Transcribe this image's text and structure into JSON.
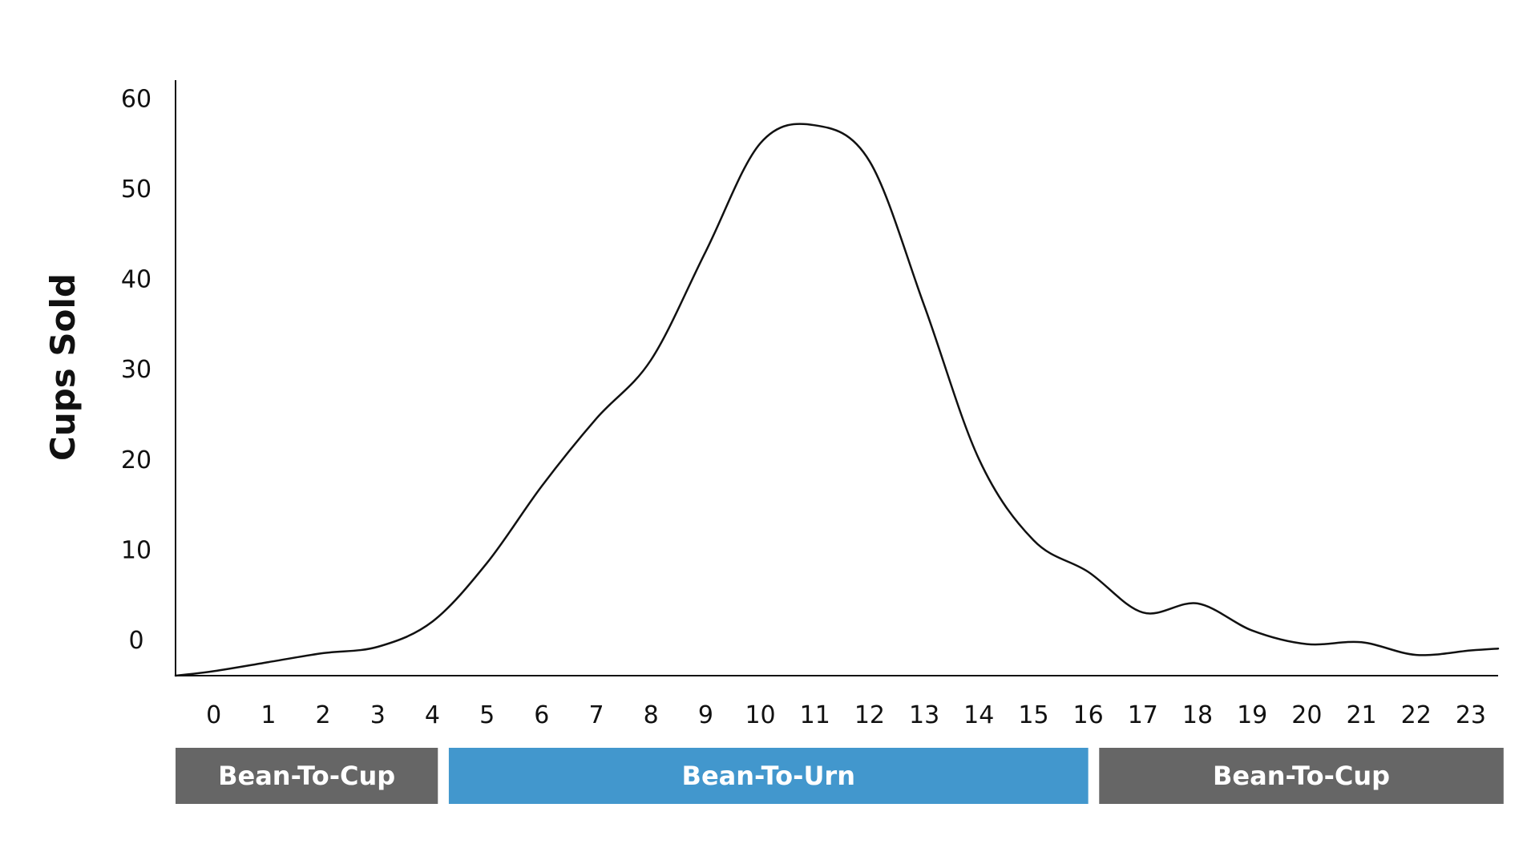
{
  "chart_data": {
    "type": "line",
    "title": "",
    "xlabel": "",
    "ylabel": "Cups  Sold",
    "x": [
      0,
      1,
      2,
      3,
      4,
      5,
      6,
      7,
      8,
      9,
      10,
      11,
      12,
      13,
      14,
      15,
      16,
      17,
      18,
      19,
      20,
      21,
      22,
      23
    ],
    "x_tick_labels": [
      "0",
      "1",
      "2",
      "3",
      "4",
      "5",
      "6",
      "7",
      "8",
      "9",
      "10",
      "11",
      "12",
      "13",
      "14",
      "15",
      "16",
      "17",
      "18",
      "19",
      "20",
      "21",
      "22",
      "23"
    ],
    "y_tick_labels": [
      "0",
      "10",
      "20",
      "30",
      "40",
      "50",
      "60"
    ],
    "y_ticks": [
      0,
      10,
      20,
      30,
      40,
      50,
      60
    ],
    "ylim": [
      -4,
      62
    ],
    "xlim": [
      -0.7,
      23.5
    ],
    "grid": false,
    "series": [
      {
        "x": [
          -0.7,
          0,
          1,
          2,
          3,
          4,
          5,
          6,
          7,
          8,
          9,
          10,
          11,
          12,
          13,
          14,
          15,
          16,
          17,
          18,
          19,
          20,
          21,
          22,
          23,
          23.5
        ],
        "values": [
          -4,
          -3.5,
          -2.5,
          -1.5,
          -0.8,
          2,
          8.5,
          17,
          24.5,
          31,
          43,
          55,
          57,
          53,
          37,
          20,
          11,
          7.5,
          3,
          4,
          1,
          -0.5,
          -0.3,
          -1.7,
          -1.2,
          -1
        ],
        "color": "#111111"
      }
    ],
    "bands": [
      {
        "label": "Bean-To-Cup",
        "x_start": -0.7,
        "x_end": 4.1,
        "color": "#666666"
      },
      {
        "label": "Bean-To-Urn",
        "x_start": 4.3,
        "x_end": 16.0,
        "color": "#4297cd"
      },
      {
        "label": "Bean-To-Cup",
        "x_start": 16.2,
        "x_end": 23.6,
        "color": "#666666"
      }
    ]
  }
}
